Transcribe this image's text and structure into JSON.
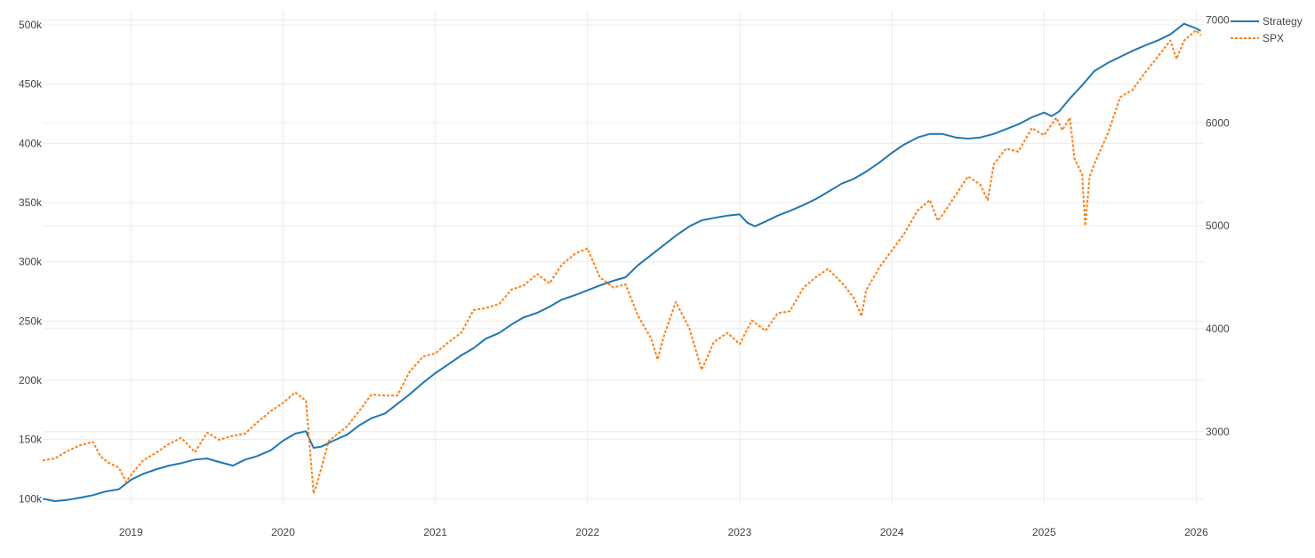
{
  "chart_data": {
    "type": "line",
    "title": "",
    "xlabel": "",
    "ylabel": "",
    "y2label": "",
    "grid": true,
    "legend_position": "top-right",
    "xlim": [
      2018.42,
      2026.05
    ],
    "ylim": [
      95000,
      512000
    ],
    "y2lim": [
      2290,
      7090
    ],
    "x_ticks": [
      2019,
      2020,
      2021,
      2022,
      2023,
      2024,
      2025,
      2026
    ],
    "x_tick_labels": [
      "2019",
      "2020",
      "2021",
      "2022",
      "2023",
      "2024",
      "2025",
      "2026"
    ],
    "y_ticks": [
      100000,
      150000,
      200000,
      250000,
      300000,
      350000,
      400000,
      450000,
      500000
    ],
    "y_tick_labels": [
      "100k",
      "150k",
      "200k",
      "250k",
      "300k",
      "350k",
      "400k",
      "450k",
      "500k"
    ],
    "y2_ticks": [
      3000,
      4000,
      5000,
      6000,
      7000
    ],
    "y2_tick_labels": [
      "3000",
      "4000",
      "5000",
      "6000",
      "7000"
    ],
    "series": [
      {
        "name": "Strategy",
        "axis": "y",
        "color": "#1f77b4",
        "dash": "solid",
        "x": [
          2018.42,
          2018.5,
          2018.58,
          2018.67,
          2018.75,
          2018.83,
          2018.92,
          2019.0,
          2019.08,
          2019.17,
          2019.25,
          2019.33,
          2019.42,
          2019.5,
          2019.58,
          2019.67,
          2019.75,
          2019.83,
          2019.92,
          2020.0,
          2020.08,
          2020.15,
          2020.2,
          2020.25,
          2020.33,
          2020.42,
          2020.5,
          2020.58,
          2020.67,
          2020.75,
          2020.83,
          2020.92,
          2021.0,
          2021.08,
          2021.17,
          2021.25,
          2021.33,
          2021.42,
          2021.5,
          2021.58,
          2021.67,
          2021.75,
          2021.83,
          2021.92,
          2022.0,
          2022.08,
          2022.17,
          2022.25,
          2022.33,
          2022.42,
          2022.5,
          2022.58,
          2022.67,
          2022.75,
          2022.83,
          2022.92,
          2023.0,
          2023.05,
          2023.1,
          2023.17,
          2023.25,
          2023.33,
          2023.42,
          2023.5,
          2023.58,
          2023.67,
          2023.75,
          2023.83,
          2023.92,
          2024.0,
          2024.08,
          2024.17,
          2024.25,
          2024.33,
          2024.42,
          2024.5,
          2024.58,
          2024.67,
          2024.75,
          2024.83,
          2024.92,
          2025.0,
          2025.05,
          2025.1,
          2025.17,
          2025.25,
          2025.33,
          2025.42,
          2025.5,
          2025.58,
          2025.67,
          2025.75,
          2025.83,
          2025.92,
          2026.0,
          2026.03
        ],
        "values": [
          100000,
          98000,
          99000,
          101000,
          103000,
          106000,
          108000,
          116000,
          121000,
          125000,
          128000,
          130000,
          133000,
          134000,
          131000,
          128000,
          133000,
          136000,
          141000,
          149000,
          155000,
          157000,
          143000,
          144000,
          149000,
          154000,
          162000,
          168000,
          172000,
          180000,
          188000,
          198000,
          206000,
          213000,
          221000,
          227000,
          235000,
          240000,
          247000,
          253000,
          257000,
          262000,
          268000,
          272000,
          276000,
          280000,
          284000,
          287000,
          297000,
          306000,
          314000,
          322000,
          330000,
          335000,
          337000,
          339000,
          340000,
          333000,
          330000,
          334000,
          339000,
          343000,
          348000,
          353000,
          359000,
          366000,
          370000,
          376000,
          384000,
          392000,
          399000,
          405000,
          408000,
          408000,
          405000,
          404000,
          405000,
          408000,
          412000,
          416000,
          422000,
          426000,
          423000,
          427000,
          438000,
          449000,
          461000,
          468000,
          473000,
          478000,
          483000,
          487000,
          492000,
          501000,
          497000,
          495000
        ]
      },
      {
        "name": "SPX",
        "axis": "y2",
        "color": "#ff7f0e",
        "dash": "dot",
        "x": [
          2018.42,
          2018.5,
          2018.58,
          2018.67,
          2018.75,
          2018.8,
          2018.85,
          2018.92,
          2018.97,
          2019.0,
          2019.08,
          2019.17,
          2019.25,
          2019.33,
          2019.42,
          2019.5,
          2019.58,
          2019.67,
          2019.75,
          2019.83,
          2019.92,
          2020.0,
          2020.08,
          2020.15,
          2020.2,
          2020.22,
          2020.3,
          2020.42,
          2020.5,
          2020.58,
          2020.67,
          2020.75,
          2020.83,
          2020.92,
          2021.0,
          2021.08,
          2021.17,
          2021.25,
          2021.33,
          2021.42,
          2021.5,
          2021.58,
          2021.67,
          2021.75,
          2021.83,
          2021.92,
          2022.0,
          2022.08,
          2022.17,
          2022.25,
          2022.33,
          2022.42,
          2022.46,
          2022.5,
          2022.58,
          2022.67,
          2022.75,
          2022.83,
          2022.92,
          2023.0,
          2023.08,
          2023.17,
          2023.25,
          2023.33,
          2023.42,
          2023.5,
          2023.58,
          2023.67,
          2023.75,
          2023.8,
          2023.83,
          2023.92,
          2024.0,
          2024.08,
          2024.17,
          2024.25,
          2024.3,
          2024.33,
          2024.42,
          2024.5,
          2024.58,
          2024.63,
          2024.67,
          2024.75,
          2024.83,
          2024.92,
          2025.0,
          2025.08,
          2025.12,
          2025.17,
          2025.2,
          2025.25,
          2025.27,
          2025.3,
          2025.33,
          2025.42,
          2025.5,
          2025.58,
          2025.67,
          2025.75,
          2025.83,
          2025.87,
          2025.92,
          2026.0,
          2026.03
        ],
        "values": [
          2720,
          2740,
          2810,
          2870,
          2900,
          2760,
          2700,
          2650,
          2510,
          2580,
          2720,
          2800,
          2880,
          2940,
          2800,
          2990,
          2920,
          2960,
          2980,
          3090,
          3200,
          3280,
          3380,
          3300,
          2400,
          2480,
          2910,
          3050,
          3200,
          3360,
          3350,
          3350,
          3580,
          3730,
          3760,
          3860,
          3960,
          4180,
          4200,
          4240,
          4380,
          4420,
          4530,
          4440,
          4620,
          4730,
          4780,
          4500,
          4400,
          4430,
          4130,
          3900,
          3700,
          3920,
          4260,
          4000,
          3600,
          3870,
          3960,
          3850,
          4080,
          3980,
          4150,
          4170,
          4400,
          4500,
          4580,
          4450,
          4300,
          4120,
          4370,
          4600,
          4760,
          4920,
          5150,
          5250,
          5050,
          5100,
          5300,
          5480,
          5400,
          5250,
          5600,
          5750,
          5720,
          5950,
          5880,
          6050,
          5930,
          6050,
          5650,
          5500,
          5000,
          5480,
          5600,
          5900,
          6250,
          6320,
          6500,
          6650,
          6800,
          6620,
          6800,
          6900,
          6850
        ]
      }
    ]
  }
}
